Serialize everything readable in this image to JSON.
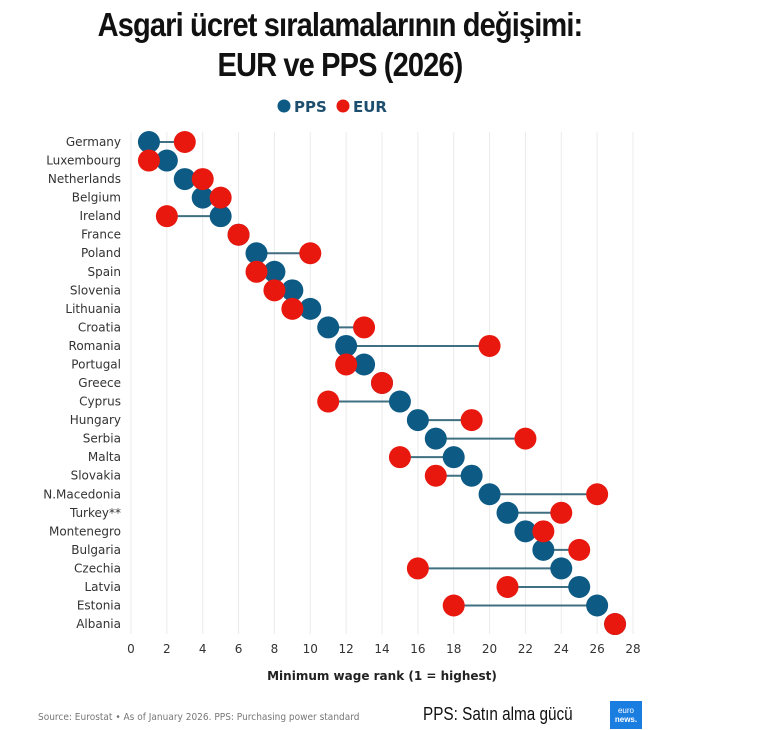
{
  "chart_data": {
    "type": "dumbbell",
    "title": "Asgari ücret sıralamalarının değişimi:",
    "subtitle": "EUR ve PPS (2026)",
    "xlabel": "Minimum wage rank (1 = highest)",
    "ylabel": "",
    "xlim": [
      0,
      28
    ],
    "xticks": [
      0,
      2,
      4,
      6,
      8,
      10,
      12,
      14,
      16,
      18,
      20,
      22,
      24,
      26,
      28
    ],
    "grid": "vertical",
    "legend_position": "top-center",
    "categories": [
      "Germany",
      "Luxembourg",
      "Netherlands",
      "Belgium",
      "Ireland",
      "France",
      "Poland",
      "Spain",
      "Slovenia",
      "Lithuania",
      "Croatia",
      "Romania",
      "Portugal",
      "Greece",
      "Cyprus",
      "Hungary",
      "Serbia",
      "Malta",
      "Slovakia",
      "N.Macedonia",
      "Turkey**",
      "Montenegro",
      "Bulgaria",
      "Czechia",
      "Latvia",
      "Estonia",
      "Albania"
    ],
    "series": [
      {
        "name": "PPS",
        "color": "#0d5b85",
        "values": [
          1,
          2,
          3,
          4,
          5,
          6,
          7,
          8,
          9,
          10,
          11,
          12,
          13,
          14,
          15,
          16,
          17,
          18,
          19,
          20,
          21,
          22,
          23,
          24,
          25,
          26,
          27
        ]
      },
      {
        "name": "EUR",
        "color": "#e8180f",
        "values": [
          3,
          1,
          4,
          5,
          2,
          6,
          10,
          7,
          8,
          9,
          13,
          20,
          12,
          14,
          11,
          19,
          22,
          15,
          17,
          26,
          24,
          23,
          25,
          16,
          21,
          18,
          27
        ]
      }
    ]
  },
  "footer": {
    "source": "Source: Eurostat • As of January 2026. PPS: Purchasing power standard",
    "note": "PPS: Satın alma gücü",
    "logo": "euronews."
  }
}
